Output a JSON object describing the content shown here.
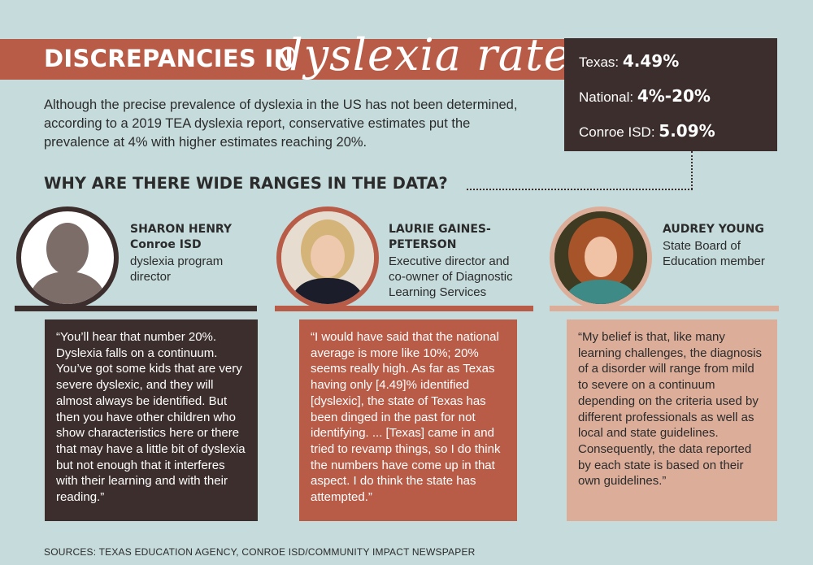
{
  "title": {
    "bold": "DISCREPANCIES IN",
    "script": "dyslexia rates"
  },
  "stats": [
    {
      "label": "Texas:",
      "value": "4.49%"
    },
    {
      "label": "National:",
      "value": "4%-20%"
    },
    {
      "label": "Conroe ISD:",
      "value": "5.09%"
    }
  ],
  "intro": "Although the precise prevalence of dyslexia in the US has not been determined, according to a 2019 TEA dyslexia report, conservative estimates put the prevalence at 4% with higher estimates reaching 20%.",
  "subheading": "WHY ARE THERE WIDE RANGES IN THE DATA?",
  "people": [
    {
      "name_lines": [
        "SHARON HENRY",
        "Conroe ISD"
      ],
      "role_lines": [
        "dyslexia program",
        "director"
      ],
      "quote": "“You’ll hear that number 20%. Dyslexia falls on a continuum. You’ve got some kids that are very severe dyslexic, and they will almost always be identified. But then you have other children who show characteristics here or there that may have a little bit of dyslexia but not enough that it interferes with their learning and with their reading.”",
      "color": "#3c2e2c"
    },
    {
      "name_lines": [
        "LAURIE GAINES-",
        "PETERSON"
      ],
      "role_lines": [
        "Executive director and",
        "co-owner of Diagnostic",
        "Learning Services"
      ],
      "quote": "“I would have said that the national average is more like 10%; 20% seems really high. As far as Texas having only [4.49]% identified [dyslexic], the state of Texas has been dinged in the past for not identifying. ... [Texas] came in and tried to revamp things, so I do think the numbers have come up in that aspect. I do think the state has attempted.”",
      "color": "#b85c48"
    },
    {
      "name_lines": [
        "AUDREY YOUNG"
      ],
      "role_lines": [
        "State Board of",
        "Education member"
      ],
      "quote": "“My belief is that, like many learning challenges, the diagnosis of a disorder will range from mild to severe on a continuum depending on the  criteria used by different professionals as well as local and state guidelines. Consequently, the data reported by each state is based on their own guidelines.”",
      "color": "#dcae9a"
    }
  ],
  "sources": "SOURCES: TEXAS EDUCATION AGENCY, CONROE ISD/COMMUNITY IMPACT NEWSPAPER"
}
